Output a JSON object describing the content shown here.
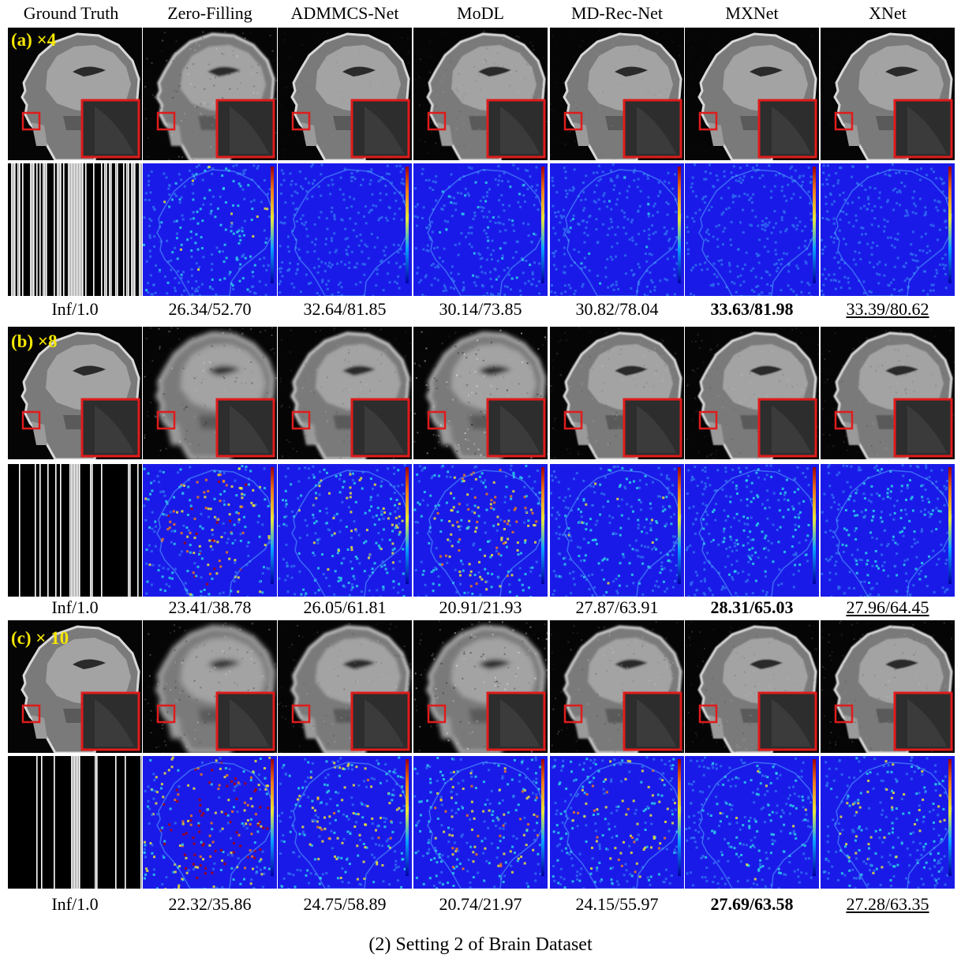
{
  "columns": [
    "Ground Truth",
    "Zero-Filling",
    "ADMMCS-Net",
    "MoDL",
    "MD-Rec-Net",
    "MXNet",
    "XNet"
  ],
  "caption": "(2) Setting 2 of Brain Dataset",
  "rows": [
    {
      "label": "(a) ×4",
      "metrics": [
        "Inf/1.0",
        "26.34/52.70",
        "32.64/81.85",
        "30.14/73.85",
        "30.82/78.04",
        "33.63/81.98",
        "33.39/80.62"
      ],
      "best_index": 5,
      "second_index": 6,
      "blur": [
        0,
        0.35,
        0.1,
        0.15,
        0.1,
        0.05,
        0.05
      ],
      "noise": [
        0,
        0.5,
        0.1,
        0.25,
        0.15,
        0.05,
        0.05
      ],
      "error_level": [
        0,
        0.3,
        0.12,
        0.18,
        0.15,
        0.1,
        0.11
      ]
    },
    {
      "label": "(b) ×8",
      "metrics": [
        "Inf/1.0",
        "23.41/38.78",
        "26.05/61.81",
        "20.91/21.93",
        "27.87/63.91",
        "28.31/65.03",
        "27.96/64.45"
      ],
      "best_index": 5,
      "second_index": 6,
      "blur": [
        0,
        0.9,
        0.45,
        0.8,
        0.25,
        0.2,
        0.22
      ],
      "noise": [
        0,
        0.6,
        0.3,
        0.9,
        0.3,
        0.25,
        0.25
      ],
      "error_level": [
        0,
        0.62,
        0.4,
        0.55,
        0.3,
        0.27,
        0.28
      ]
    },
    {
      "label": "(c) × 10",
      "metrics": [
        "Inf/1.0",
        "22.32/35.86",
        "24.75/58.89",
        "20.74/21.97",
        "24.15/55.97",
        "27.69/63.58",
        "27.28/63.35"
      ],
      "best_index": 5,
      "second_index": 6,
      "blur": [
        0,
        1.0,
        0.55,
        0.85,
        0.4,
        0.2,
        0.25
      ],
      "noise": [
        0,
        0.6,
        0.35,
        0.9,
        0.4,
        0.25,
        0.3
      ],
      "error_level": [
        0,
        0.85,
        0.45,
        0.5,
        0.5,
        0.3,
        0.36
      ]
    }
  ],
  "colors": {
    "label": "#f5e600",
    "zoom_box": "#e01b1b",
    "error_low": "#1a1ae8",
    "error_high": "#b00000"
  }
}
